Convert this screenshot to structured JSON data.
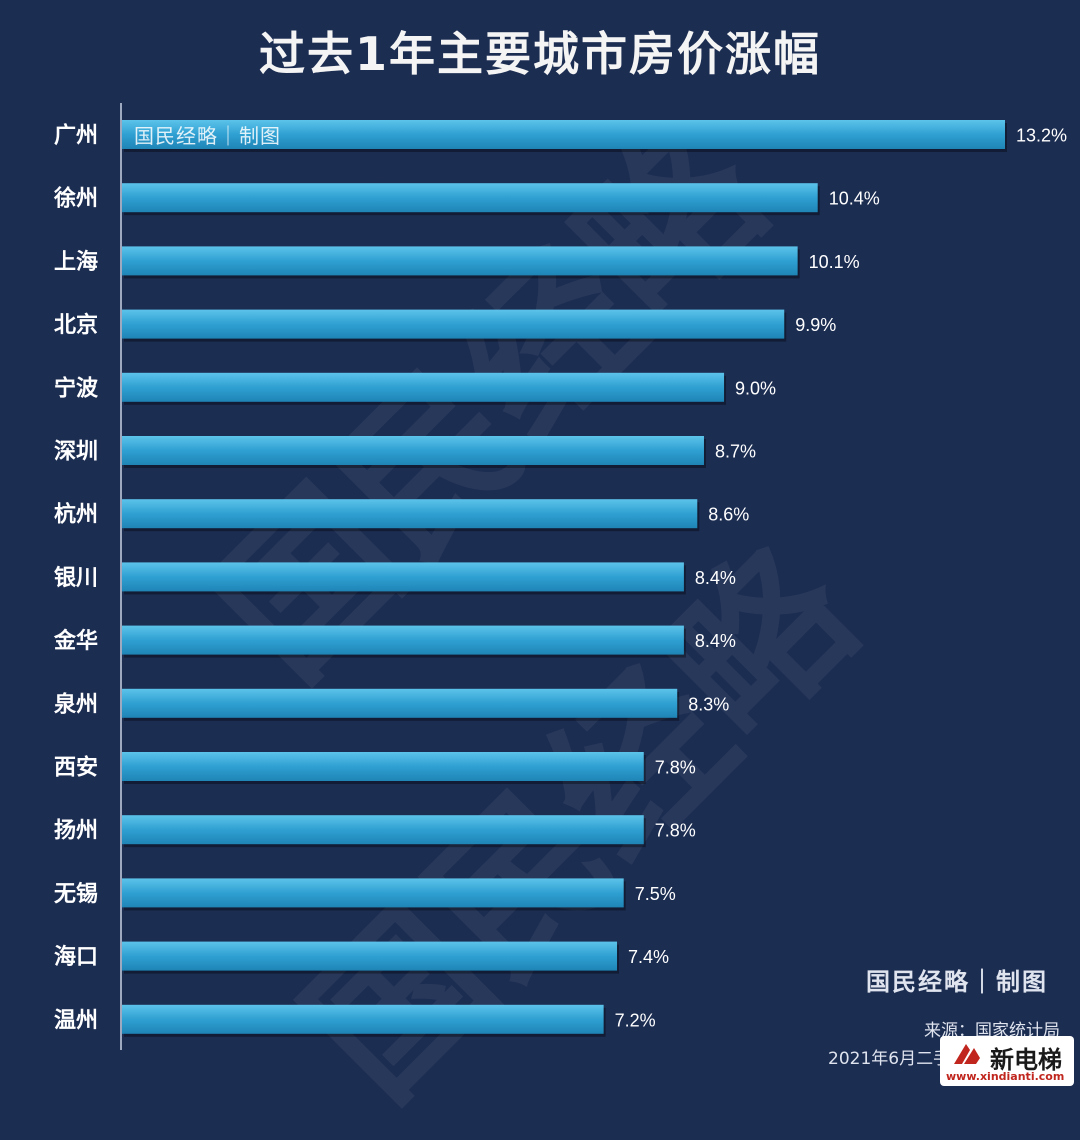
{
  "chart_data": {
    "type": "bar",
    "orientation": "horizontal",
    "title": "过去1年主要城市房价涨幅",
    "categories": [
      "广州",
      "徐州",
      "上海",
      "北京",
      "宁波",
      "深圳",
      "杭州",
      "银川",
      "金华",
      "泉州",
      "西安",
      "扬州",
      "无锡",
      "海口",
      "温州"
    ],
    "values": [
      13.2,
      10.4,
      10.1,
      9.9,
      9.0,
      8.7,
      8.6,
      8.4,
      8.4,
      8.3,
      7.8,
      7.8,
      7.5,
      7.4,
      7.2
    ],
    "value_labels": [
      "13.2%",
      "10.4%",
      "10.1%",
      "9.9%",
      "9.0%",
      "8.7%",
      "8.6%",
      "8.4%",
      "8.4%",
      "8.3%",
      "7.8%",
      "7.8%",
      "7.5%",
      "7.4%",
      "7.2%"
    ],
    "xlim": [
      0,
      13.2
    ],
    "grid": false,
    "colors": {
      "bar": "#2fa0d2",
      "bar_light": "#4cb8e4",
      "background": "#1c2d52",
      "text": "#ffffff"
    }
  },
  "watermark": {
    "in_bar": "国民经略｜制图",
    "big": "国民经略"
  },
  "footer": {
    "brand": "国民经略｜制图",
    "source": "来源：国家统计局",
    "note": "2021年6月二手房",
    "logo_text": "新电梯",
    "logo_url": "www.xindianti.com"
  }
}
